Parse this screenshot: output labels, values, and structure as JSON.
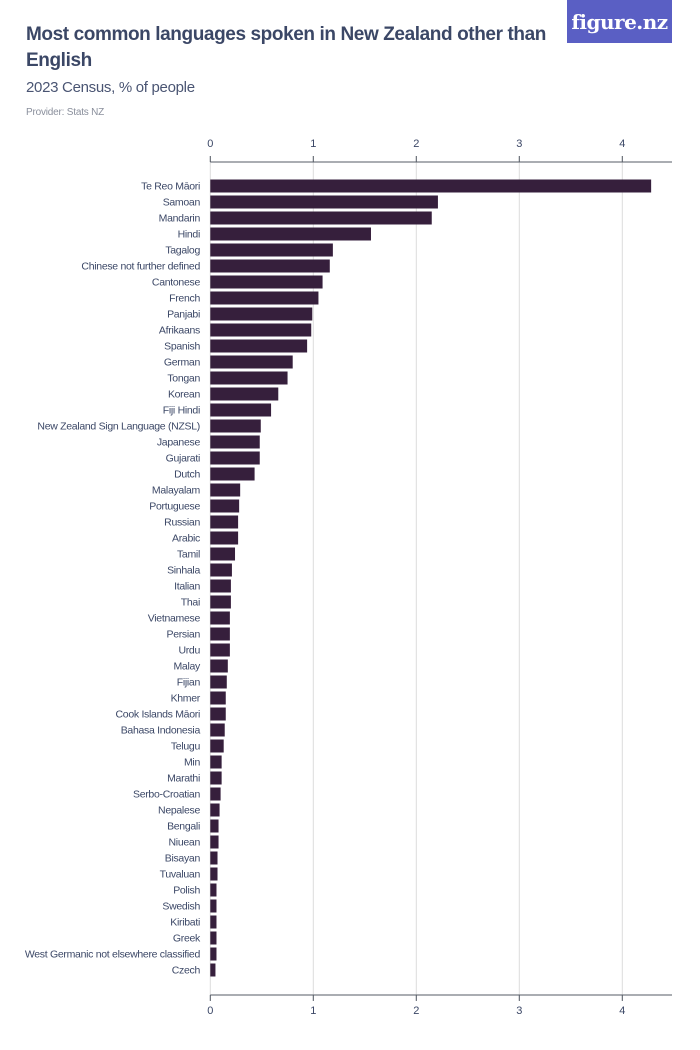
{
  "header": {
    "title": "Most common languages spoken in New Zealand other than English",
    "subtitle": "2023 Census, % of people",
    "provider": "Provider: Stats NZ",
    "logo": "figure.nz"
  },
  "colors": {
    "bar": "#361f3c",
    "grid": "#dcdcdc",
    "axis": "#555b66",
    "label": "#3b4766",
    "logo_bg": "#5a5fc4"
  },
  "chart_data": {
    "type": "bar",
    "orientation": "horizontal",
    "title": "Most common languages spoken in New Zealand other than English",
    "subtitle": "2023 Census, % of people",
    "xlabel": "",
    "ylabel": "",
    "xlim": [
      0,
      4.5
    ],
    "xticks": [
      0,
      1,
      2,
      3,
      4
    ],
    "grid": true,
    "categories": [
      "Te Reo Māori",
      "Samoan",
      "Mandarin",
      "Hindi",
      "Tagalog",
      "Chinese not further defined",
      "Cantonese",
      "French",
      "Panjabi",
      "Afrikaans",
      "Spanish",
      "German",
      "Tongan",
      "Korean",
      "Fiji Hindi",
      "New Zealand Sign Language (NZSL)",
      "Japanese",
      "Gujarati",
      "Dutch",
      "Malayalam",
      "Portuguese",
      "Russian",
      "Arabic",
      "Tamil",
      "Sinhala",
      "Italian",
      "Thai",
      "Vietnamese",
      "Persian",
      "Urdu",
      "Malay",
      "Fijian",
      "Khmer",
      "Cook Islands Māori",
      "Bahasa Indonesia",
      "Telugu",
      "Min",
      "Marathi",
      "Serbo-Croatian",
      "Nepalese",
      "Bengali",
      "Niuean",
      "Bisayan",
      "Tuvaluan",
      "Polish",
      "Swedish",
      "Kiribati",
      "Greek",
      "West Germanic not elsewhere classified",
      "Czech"
    ],
    "values": [
      4.28,
      2.21,
      2.15,
      1.56,
      1.19,
      1.16,
      1.09,
      1.05,
      0.99,
      0.98,
      0.94,
      0.8,
      0.75,
      0.66,
      0.59,
      0.49,
      0.48,
      0.48,
      0.43,
      0.29,
      0.28,
      0.27,
      0.27,
      0.24,
      0.21,
      0.2,
      0.2,
      0.19,
      0.19,
      0.19,
      0.17,
      0.16,
      0.15,
      0.15,
      0.14,
      0.13,
      0.11,
      0.11,
      0.1,
      0.09,
      0.08,
      0.08,
      0.07,
      0.07,
      0.06,
      0.06,
      0.06,
      0.06,
      0.06,
      0.05
    ]
  }
}
